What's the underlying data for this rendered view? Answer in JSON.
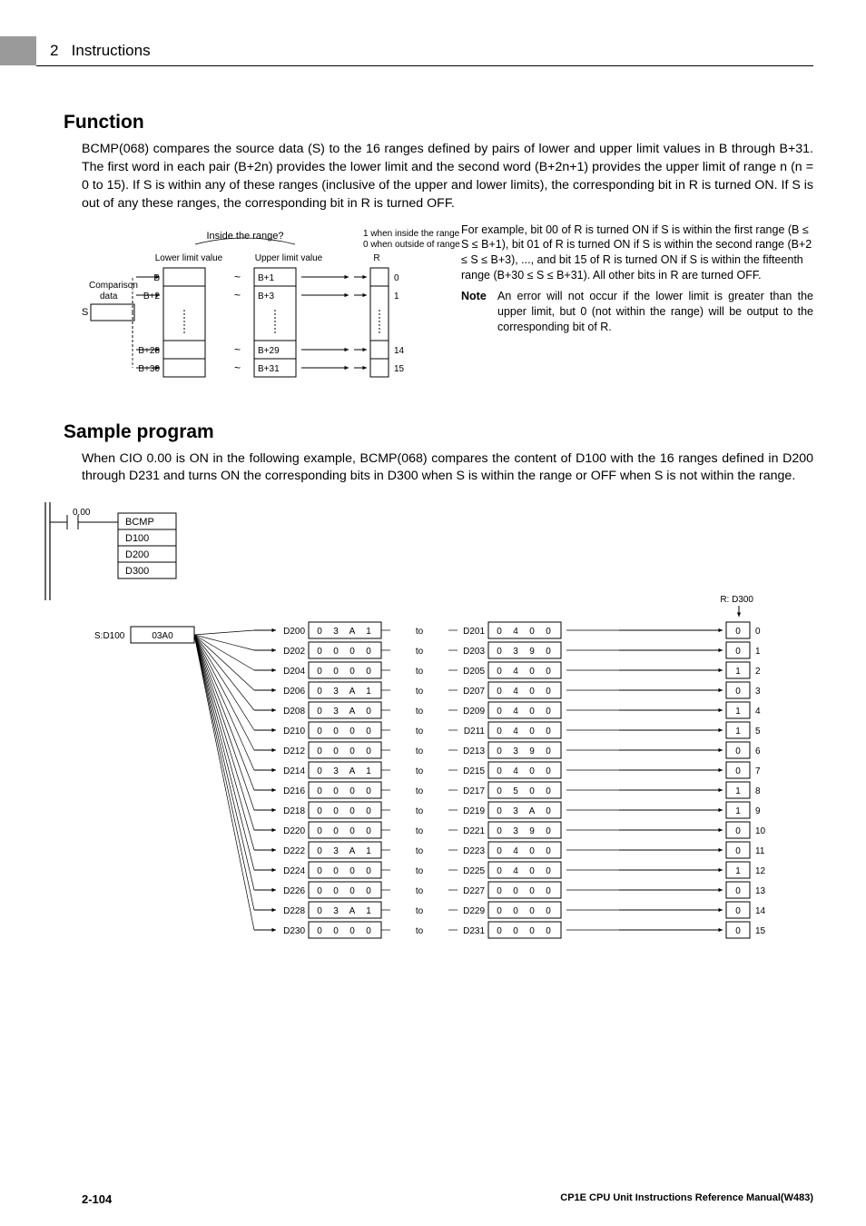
{
  "header": {
    "section_num": "2",
    "section_title": "Instructions"
  },
  "function": {
    "title": "Function",
    "para": "BCMP(068) compares the source data (S) to the 16 ranges defined by pairs of lower and upper limit values in B through B+31. The first word in each pair (B+2n) provides the lower limit and the second word (B+2n+1) provides the upper limit of range n (n = 0 to 15). If S is within any of these ranges (inclusive of the upper and lower limits), the corresponding bit in R is turned ON.  If S is out of any these ranges, the corresponding bit in R is turned OFF.",
    "diagram": {
      "inside_label": "Inside the range?",
      "top_right1": "1 when inside the range",
      "top_right0": "0 when outside of range",
      "lower_label": "Lower limit value",
      "upper_label": "Upper limit value",
      "r_label": "R",
      "comp_label1": "Comparison",
      "comp_label2": "data",
      "s_label": "S",
      "tilde": "~",
      "b_rows": [
        "B",
        "B+2",
        "B+28",
        "B+30"
      ],
      "u_rows": [
        "B+1",
        "B+3",
        "B+29",
        "B+31"
      ],
      "r_rows": [
        "0",
        "1",
        "14",
        "15"
      ]
    },
    "right_para": "For example, bit 00 of R is turned ON if S is within the first range (B ≤ S ≤ B+1), bit 01 of R is turned ON if S is within the second range (B+2 ≤ S ≤ B+3), ..., and bit 15 of R is turned ON if S is within the fifteenth range (B+30 ≤ S ≤ B+31). All other bits in R are turned OFF.",
    "note_label": "Note",
    "note_text": "An error will not occur if the lower limit is greater than the upper limit, but 0 (not within the range) will be output to the corresponding bit of R."
  },
  "sample": {
    "title": "Sample program",
    "para": "When CIO 0.00 is ON in the following example, BCMP(068) compares the content of D100 with the 16 ranges defined in D200 through D231 and turns ON the corresponding bits in D300 when S is within the range or OFF when S is not within the range.",
    "ladder": {
      "contact": "0.00",
      "inst": "BCMP",
      "ops": [
        "D100",
        "D200",
        "D300"
      ]
    },
    "table": {
      "s_label": "S:D100",
      "s_value": "03A0",
      "to_label": "to",
      "r_label": "R: D300",
      "rows": [
        {
          "dl": "D200",
          "lv": [
            "0",
            "3",
            "A",
            "1"
          ],
          "dr": "D201",
          "rv": [
            "0",
            "4",
            "0",
            "0"
          ],
          "res": "0",
          "bit": "0"
        },
        {
          "dl": "D202",
          "lv": [
            "0",
            "0",
            "0",
            "0"
          ],
          "dr": "D203",
          "rv": [
            "0",
            "3",
            "9",
            "0"
          ],
          "res": "0",
          "bit": "1"
        },
        {
          "dl": "D204",
          "lv": [
            "0",
            "0",
            "0",
            "0"
          ],
          "dr": "D205",
          "rv": [
            "0",
            "4",
            "0",
            "0"
          ],
          "res": "1",
          "bit": "2"
        },
        {
          "dl": "D206",
          "lv": [
            "0",
            "3",
            "A",
            "1"
          ],
          "dr": "D207",
          "rv": [
            "0",
            "4",
            "0",
            "0"
          ],
          "res": "0",
          "bit": "3"
        },
        {
          "dl": "D208",
          "lv": [
            "0",
            "3",
            "A",
            "0"
          ],
          "dr": "D209",
          "rv": [
            "0",
            "4",
            "0",
            "0"
          ],
          "res": "1",
          "bit": "4"
        },
        {
          "dl": "D210",
          "lv": [
            "0",
            "0",
            "0",
            "0"
          ],
          "dr": "D211",
          "rv": [
            "0",
            "4",
            "0",
            "0"
          ],
          "res": "1",
          "bit": "5"
        },
        {
          "dl": "D212",
          "lv": [
            "0",
            "0",
            "0",
            "0"
          ],
          "dr": "D213",
          "rv": [
            "0",
            "3",
            "9",
            "0"
          ],
          "res": "0",
          "bit": "6"
        },
        {
          "dl": "D214",
          "lv": [
            "0",
            "3",
            "A",
            "1"
          ],
          "dr": "D215",
          "rv": [
            "0",
            "4",
            "0",
            "0"
          ],
          "res": "0",
          "bit": "7"
        },
        {
          "dl": "D216",
          "lv": [
            "0",
            "0",
            "0",
            "0"
          ],
          "dr": "D217",
          "rv": [
            "0",
            "5",
            "0",
            "0"
          ],
          "res": "1",
          "bit": "8"
        },
        {
          "dl": "D218",
          "lv": [
            "0",
            "0",
            "0",
            "0"
          ],
          "dr": "D219",
          "rv": [
            "0",
            "3",
            "A",
            "0"
          ],
          "res": "1",
          "bit": "9"
        },
        {
          "dl": "D220",
          "lv": [
            "0",
            "0",
            "0",
            "0"
          ],
          "dr": "D221",
          "rv": [
            "0",
            "3",
            "9",
            "0"
          ],
          "res": "0",
          "bit": "10"
        },
        {
          "dl": "D222",
          "lv": [
            "0",
            "3",
            "A",
            "1"
          ],
          "dr": "D223",
          "rv": [
            "0",
            "4",
            "0",
            "0"
          ],
          "res": "0",
          "bit": "11"
        },
        {
          "dl": "D224",
          "lv": [
            "0",
            "0",
            "0",
            "0"
          ],
          "dr": "D225",
          "rv": [
            "0",
            "4",
            "0",
            "0"
          ],
          "res": "1",
          "bit": "12"
        },
        {
          "dl": "D226",
          "lv": [
            "0",
            "0",
            "0",
            "0"
          ],
          "dr": "D227",
          "rv": [
            "0",
            "0",
            "0",
            "0"
          ],
          "res": "0",
          "bit": "13"
        },
        {
          "dl": "D228",
          "lv": [
            "0",
            "3",
            "A",
            "1"
          ],
          "dr": "D229",
          "rv": [
            "0",
            "0",
            "0",
            "0"
          ],
          "res": "0",
          "bit": "14"
        },
        {
          "dl": "D230",
          "lv": [
            "0",
            "0",
            "0",
            "0"
          ],
          "dr": "D231",
          "rv": [
            "0",
            "0",
            "0",
            "0"
          ],
          "res": "0",
          "bit": "15"
        }
      ]
    }
  },
  "footer": {
    "page": "2-104",
    "doc": "CP1E CPU Unit Instructions Reference Manual(W483)"
  }
}
